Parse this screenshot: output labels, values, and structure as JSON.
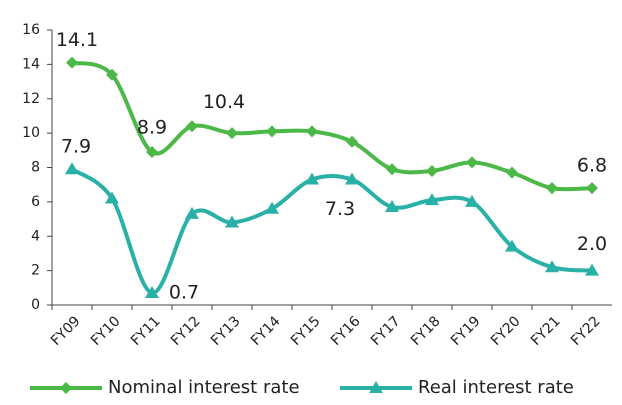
{
  "chart_data": {
    "type": "line",
    "categories": [
      "FY09",
      "FY10",
      "FY11",
      "FY12",
      "FY13",
      "FY14",
      "FY15",
      "FY16",
      "FY17",
      "FY18",
      "FY19",
      "FY20",
      "FY21",
      "FY22"
    ],
    "series": [
      {
        "name": "Nominal interest rate",
        "color": "#4cb848",
        "marker": "diamond",
        "values": [
          14.1,
          13.4,
          8.9,
          10.4,
          10.0,
          10.1,
          10.1,
          9.5,
          7.9,
          7.8,
          8.3,
          7.7,
          6.8,
          6.8
        ],
        "value_labels": [
          "14.1",
          null,
          "8.9",
          "10.4",
          null,
          null,
          null,
          null,
          null,
          null,
          null,
          null,
          null,
          "6.8"
        ]
      },
      {
        "name": "Real interest rate",
        "color": "#2ab1a7",
        "marker": "triangle",
        "values": [
          7.9,
          6.2,
          0.7,
          5.3,
          4.8,
          5.6,
          7.3,
          7.3,
          5.7,
          6.1,
          6.0,
          3.4,
          2.2,
          2.0
        ],
        "value_labels": [
          "7.9",
          null,
          "0.7",
          null,
          null,
          null,
          null,
          "7.3",
          null,
          null,
          null,
          null,
          null,
          "2.0"
        ]
      }
    ],
    "ylim": [
      0,
      16
    ],
    "yticks": [
      0,
      2,
      4,
      6,
      8,
      10,
      12,
      14,
      16
    ],
    "legend": "bottom"
  }
}
